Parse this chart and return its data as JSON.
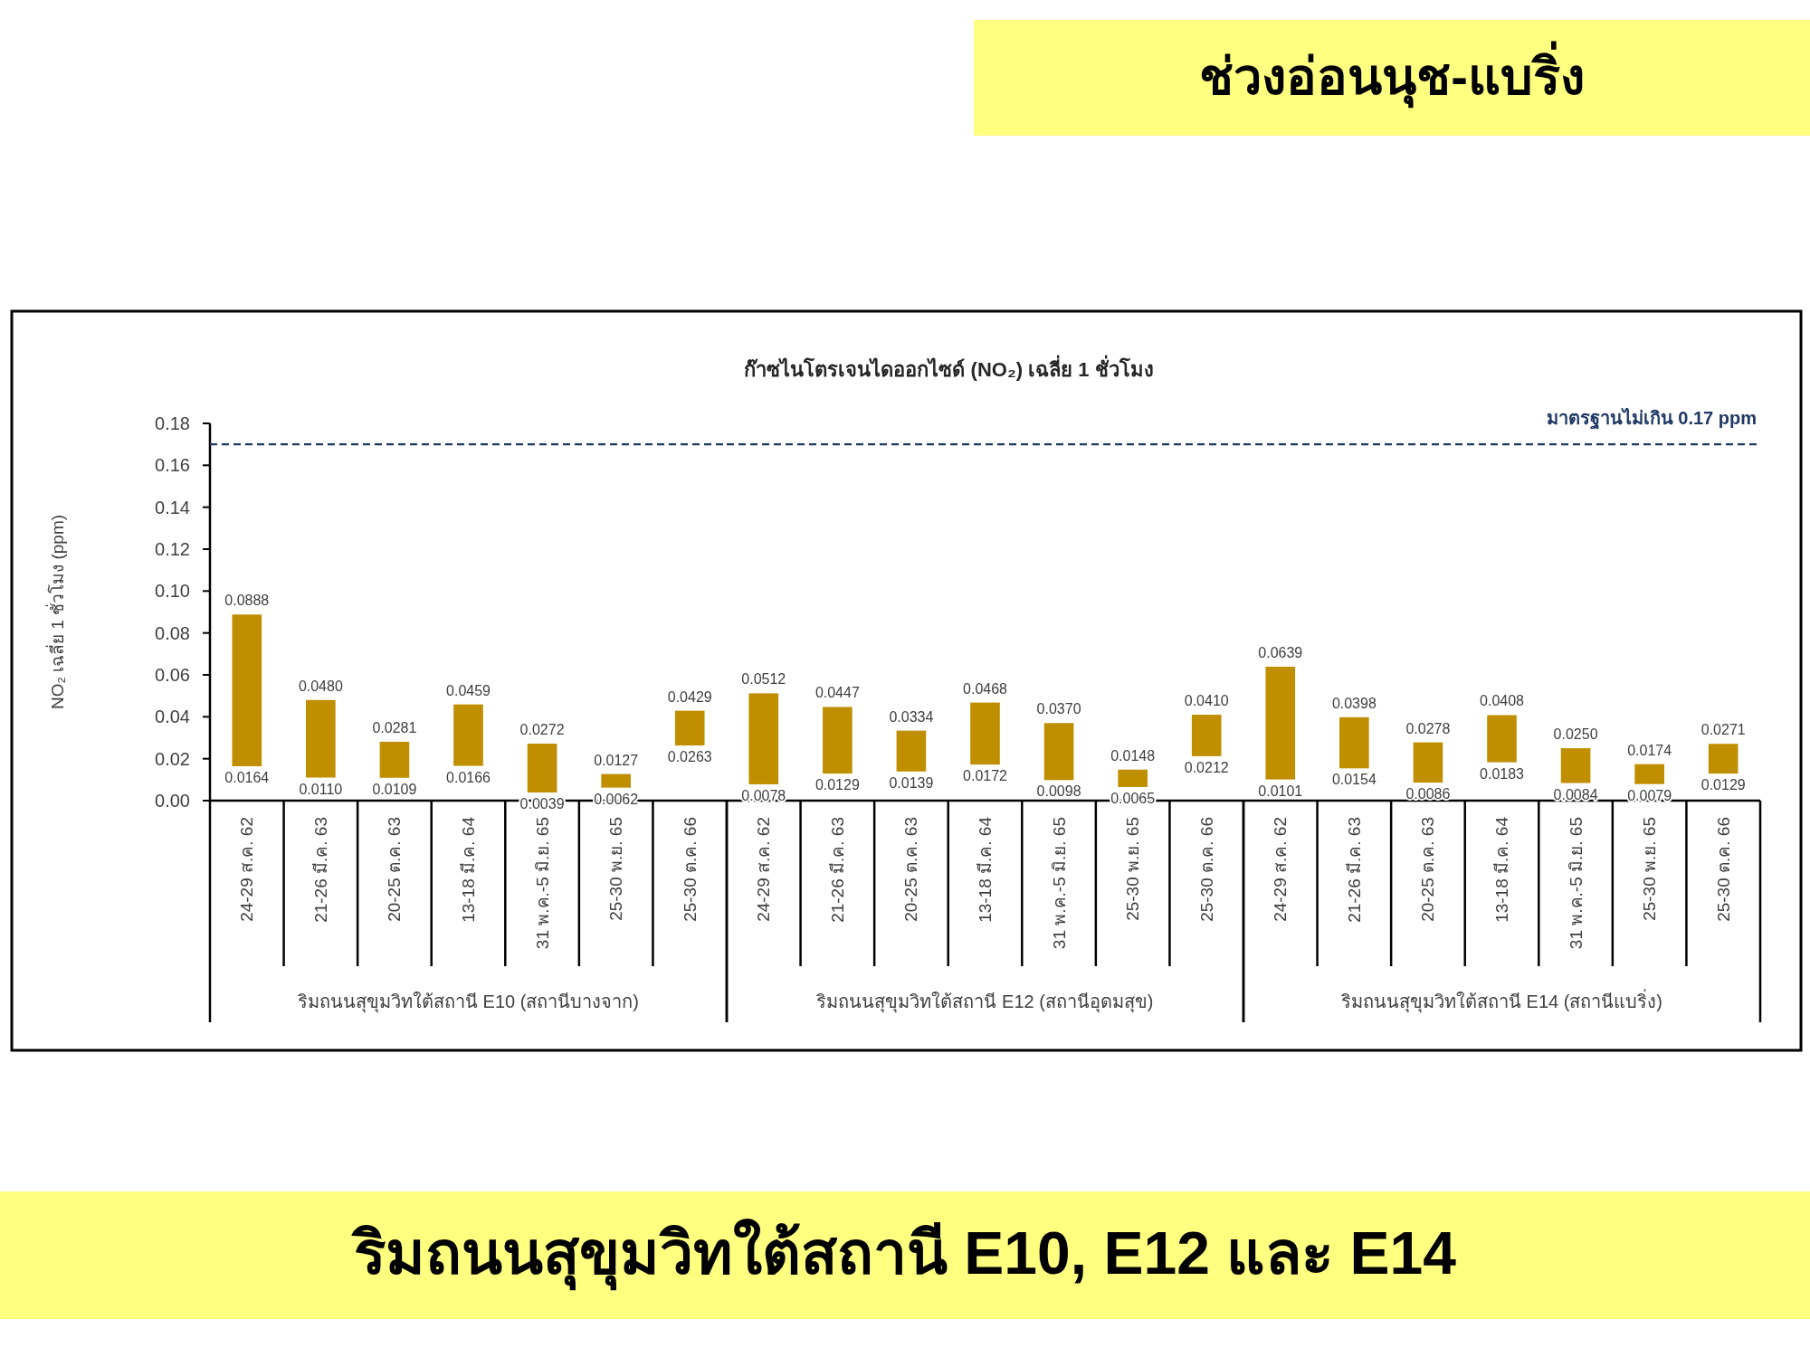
{
  "chart_data": [
    {
      "type": "bar",
      "ylabel": "NO₂  เฉลี่ย 1 ชั่วโมง (ppm)",
      "xlabel": "ริมถนนสุขุมวิทใต้สถานี E10 (สถานีบางจาก)",
      "categories": [
        "24-29 ส.ค. 62",
        "21-26 มี.ค. 63",
        "20-25 ต.ค. 63",
        "13-18 มี.ค. 64",
        "31 พ.ค.-5 มิ.ย. 65",
        "25-30 พ.ย. 65",
        "25-30 ต.ค. 66"
      ],
      "base": [
        0.0164,
        0.011,
        0.0109,
        0.0166,
        0.0039,
        0.0062,
        0.0263
      ],
      "values": [
        0.0724,
        0.037,
        0.0172,
        0.0293,
        0.0233,
        0.0065,
        0.0166
      ],
      "color": "#bf8f00",
      "ylim": [
        0,
        0.18
      ],
      "yticks": [
        {
          "value": 0,
          "label": "0.00"
        },
        {
          "value": 0.02,
          "label": "0.02"
        },
        {
          "value": 0.04,
          "label": "0.04"
        },
        {
          "value": 0.06,
          "label": "0.06"
        },
        {
          "value": 0.08,
          "label": "0.08"
        },
        {
          "value": 0.1,
          "label": "0.10"
        },
        {
          "value": 0.12,
          "label": "0.12"
        },
        {
          "value": 0.14,
          "label": "0.14"
        },
        {
          "value": 0.16,
          "label": "0.16"
        },
        {
          "value": 0.18,
          "label": "0.18"
        }
      ],
      "ref_lines": [
        {
          "axis": "y",
          "value": 0.17,
          "color": "#1f3864",
          "line_style": "dashed"
        }
      ],
      "annotations": [
        "ช่วงอ่อนนุช-แบริ่ง",
        "ริมถนนสุขุมวิทใต้สถานี E10, E12 และ E14",
        {
          "text": "0.0888",
          "x": "24-29 ส.ค. 62",
          "y": 0.0888
        },
        {
          "text": "0.0164",
          "x": "24-29 ส.ค. 62",
          "y": 0.0164
        },
        {
          "text": "0.0480",
          "x": "21-26 มี.ค. 63",
          "y": 0.048
        },
        {
          "text": "0.0110",
          "x": "21-26 มี.ค. 63",
          "y": 0.011
        },
        {
          "text": "0.0281",
          "x": "20-25 ต.ค. 63",
          "y": 0.0281
        },
        {
          "text": "0.0109",
          "x": "20-25 ต.ค. 63",
          "y": 0.0109
        },
        {
          "text": "0.0459",
          "x": "13-18 มี.ค. 64",
          "y": 0.0459
        },
        {
          "text": "0.0166",
          "x": "13-18 มี.ค. 64",
          "y": 0.0166
        },
        {
          "text": "0.0272",
          "x": "31 พ.ค.-5 มิ.ย. 65",
          "y": 0.0272
        },
        {
          "text": "0.0039",
          "x": "31 พ.ค.-5 มิ.ย. 65",
          "y": 0.0039
        },
        {
          "text": "0.0127",
          "x": "25-30 พ.ย. 65",
          "y": 0.0127
        },
        {
          "text": "0.0062",
          "x": "25-30 พ.ย. 65",
          "y": 0.0062
        },
        {
          "text": "0.0429",
          "x": "25-30 ต.ค. 66",
          "y": 0.0429
        },
        {
          "text": "0.0263",
          "x": "25-30 ต.ค. 66",
          "y": 0.0263
        }
      ]
    },
    {
      "type": "bar",
      "title": "ก๊าซไนโตรเจนไดออกไซด์ (NO₂) เฉลี่ย 1 ชั่วโมง",
      "xlabel": "ริมถนนสุขุมวิทใต้สถานี E12 (สถานีอุดมสุข)",
      "tick_labels": "x",
      "categories": [
        "24-29 ส.ค. 62",
        "21-26 มี.ค. 63",
        "20-25 ต.ค. 63",
        "13-18 มี.ค. 64",
        "31 พ.ค.-5 มิ.ย. 65",
        "25-30 พ.ย. 65",
        "25-30 ต.ค. 66"
      ],
      "base": [
        0.0078,
        0.0129,
        0.0139,
        0.0172,
        0.0098,
        0.0065,
        0.0212
      ],
      "values": [
        0.0434,
        0.0318,
        0.0195,
        0.0296,
        0.0272,
        0.0083,
        0.0198
      ],
      "color": "#bf8f00",
      "ylim": [
        0,
        0.18
      ],
      "ref_lines": [
        {
          "axis": "y",
          "value": 0.17,
          "color": "#1f3864",
          "line_style": "dashed"
        }
      ],
      "annotations": [
        {
          "text": "0.0512",
          "x": "24-29 ส.ค. 62",
          "y": 0.0512
        },
        {
          "text": "0.0078",
          "x": "24-29 ส.ค. 62",
          "y": 0.0078
        },
        {
          "text": "0.0447",
          "x": "21-26 มี.ค. 63",
          "y": 0.0447
        },
        {
          "text": "0.0129",
          "x": "21-26 มี.ค. 63",
          "y": 0.0129
        },
        {
          "text": "0.0334",
          "x": "20-25 ต.ค. 63",
          "y": 0.0334
        },
        {
          "text": "0.0139",
          "x": "20-25 ต.ค. 63",
          "y": 0.0139
        },
        {
          "text": "0.0468",
          "x": "13-18 มี.ค. 64",
          "y": 0.0468
        },
        {
          "text": "0.0172",
          "x": "13-18 มี.ค. 64",
          "y": 0.0172
        },
        {
          "text": "0.0370",
          "x": "31 พ.ค.-5 มิ.ย. 65",
          "y": 0.037
        },
        {
          "text": "0.0098",
          "x": "31 พ.ค.-5 มิ.ย. 65",
          "y": 0.0098
        },
        {
          "text": "0.0148",
          "x": "25-30 พ.ย. 65",
          "y": 0.0148
        },
        {
          "text": "0.0065",
          "x": "25-30 พ.ย. 65",
          "y": 0.0065
        },
        {
          "text": "0.0410",
          "x": "25-30 ต.ค. 66",
          "y": 0.041
        },
        {
          "text": "0.0212",
          "x": "25-30 ต.ค. 66",
          "y": 0.0212
        }
      ]
    },
    {
      "type": "bar",
      "xlabel": "ริมถนนสุขุมวิทใต้สถานี E14 (สถานีแบริ่ง)",
      "tick_labels": "x",
      "categories": [
        "24-29 ส.ค. 62",
        "21-26 มี.ค. 63",
        "20-25 ต.ค. 63",
        "13-18 มี.ค. 64",
        "31 พ.ค.-5 มิ.ย. 65",
        "25-30 พ.ย. 65",
        "25-30 ต.ค. 66"
      ],
      "base": [
        0.0101,
        0.0154,
        0.0086,
        0.0183,
        0.0084,
        0.0079,
        0.0129
      ],
      "values": [
        0.0538,
        0.0244,
        0.0192,
        0.0225,
        0.0166,
        0.0095,
        0.0142
      ],
      "color": "#bf8f00",
      "ylim": [
        0,
        0.18
      ],
      "ref_lines": [
        {
          "axis": "y",
          "value": 0.17,
          "color": "#1f3864",
          "line_style": "dashed",
          "label": "มาตรฐานไม่เกิน 0.17 ppm"
        }
      ],
      "annotations": [
        {
          "text": "0.0639",
          "x": "24-29 ส.ค. 62",
          "y": 0.0639
        },
        {
          "text": "0.0101",
          "x": "24-29 ส.ค. 62",
          "y": 0.0101
        },
        {
          "text": "0.0398",
          "x": "21-26 มี.ค. 63",
          "y": 0.0398
        },
        {
          "text": "0.0154",
          "x": "21-26 มี.ค. 63",
          "y": 0.0154
        },
        {
          "text": "0.0278",
          "x": "20-25 ต.ค. 63",
          "y": 0.0278
        },
        {
          "text": "0.0086",
          "x": "20-25 ต.ค. 63",
          "y": 0.0086
        },
        {
          "text": "0.0408",
          "x": "13-18 มี.ค. 64",
          "y": 0.0408
        },
        {
          "text": "0.0183",
          "x": "13-18 มี.ค. 64",
          "y": 0.0183
        },
        {
          "text": "0.0250",
          "x": "31 พ.ค.-5 มิ.ย. 65",
          "y": 0.025
        },
        {
          "text": "0.0084",
          "x": "31 พ.ค.-5 มิ.ย. 65",
          "y": 0.0084
        },
        {
          "text": "0.0174",
          "x": "25-30 พ.ย. 65",
          "y": 0.0174
        },
        {
          "text": "0.0079",
          "x": "25-30 พ.ย. 65",
          "y": 0.0079
        },
        {
          "text": "0.0271",
          "x": "25-30 ต.ค. 66",
          "y": 0.0271
        },
        {
          "text": "0.0129",
          "x": "25-30 ต.ค. 66",
          "y": 0.0129
        }
      ]
    }
  ]
}
